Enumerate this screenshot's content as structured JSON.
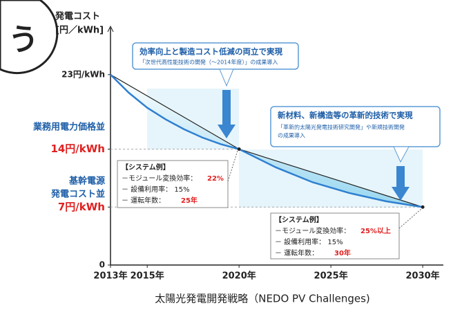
{
  "chart_data": {
    "type": "line",
    "y_label": [
      "発電コスト",
      "[円／kWh]"
    ],
    "caption": "太陽光発電開発戦略（NEDO PV Challenges)",
    "corner_mark": "う",
    "xlim": [
      2013,
      2031.5
    ],
    "ylim": [
      0,
      28
    ],
    "xticks": [
      {
        "value": 2013,
        "label": "2013年"
      },
      {
        "value": 2015,
        "label": "2015年"
      },
      {
        "value": 2020,
        "label": "2020年"
      },
      {
        "value": 2025,
        "label": "2025年"
      },
      {
        "value": 2030,
        "label": "2030年"
      }
    ],
    "yticks": [
      0,
      {
        "value": 7,
        "label": "7円/kWh"
      },
      {
        "value": 14,
        "label": "14円/kWh"
      },
      {
        "value": 23,
        "label": "23円/kWh"
      }
    ],
    "ytick_colors": [
      "#222222",
      "#e02020",
      "#e02020",
      "#222222"
    ],
    "y_annotations": [
      "業務用電力価格並",
      "基幹電源",
      "発電コスト並"
    ],
    "series": [
      {
        "color": "#222222",
        "x": [
          2013,
          2020,
          2030
        ],
        "values": [
          23,
          14,
          7
        ]
      },
      {
        "color": "#2f7fd0",
        "x": [
          2013,
          2014,
          2015,
          2016,
          2017,
          2018,
          2019,
          2020,
          2022,
          2024,
          2026,
          2028,
          2030
        ],
        "values": [
          23,
          20.8,
          19,
          17.6,
          16.4,
          15.4,
          14.6,
          14,
          11.8,
          10,
          8.7,
          7.7,
          7
        ]
      }
    ],
    "callouts": [
      {
        "title": "効率向上と製造コスト低減の両立で実現",
        "lines": [
          "「次世代高性能技術の開発（～2014年度）」の成果導入"
        ]
      },
      {
        "title": "新材料、新構造等の革新的技術で実現",
        "lines": [
          "「革新的太陽光発電技術研究開発」や新規技術開発",
          "の成果導入"
        ]
      }
    ],
    "systems": [
      {
        "heading": "【システム例】",
        "efficiency_label": "－モジュール変換効率：",
        "efficiency": "22%",
        "utilization": "－ 設備利用率： 15%",
        "years_label": "－ 運転年数：",
        "years": "25年"
      },
      {
        "heading": "【システム例】",
        "efficiency_label": "－モジュール変換効率：",
        "efficiency": "25%以上",
        "utilization": "－ 設備利用率： 15%",
        "years_label": "－ 運転年数：",
        "years": "30年"
      }
    ]
  }
}
